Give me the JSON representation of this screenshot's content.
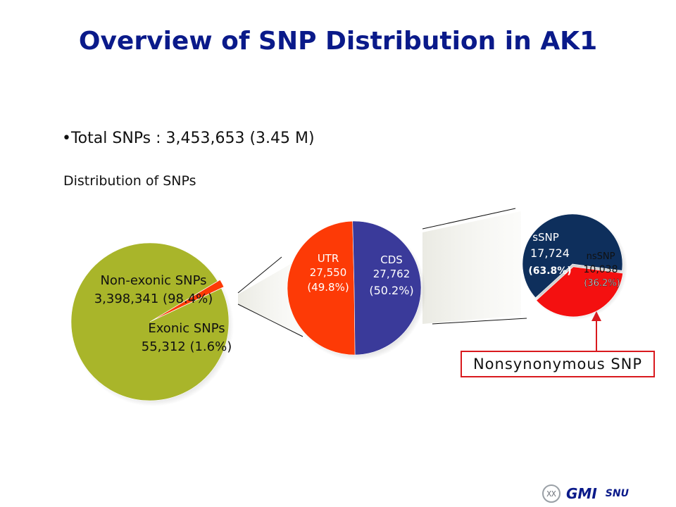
{
  "title": "Overview of SNP Distribution in AK1",
  "total_line": "•Total SNPs : 3,453,653 (3.45 M)",
  "subhead": "Distribution of SNPs",
  "callout": "Nonsynonymous  SNP",
  "footer": {
    "mark": "XX",
    "gmi": "GMI",
    "snu": "SNU"
  },
  "colors": {
    "olive": "#a9b52a",
    "red": "#fd3a06",
    "navy_purple": "#3a3a9a",
    "navy": "#0e2f5c",
    "bright_red": "#f41010",
    "title_blue": "#0a1a8a",
    "callout_red": "#d9191e"
  },
  "chart_data": [
    {
      "type": "pie",
      "slices": [
        {
          "name": "Non-exonic SNPs",
          "value": 3398341,
          "percent": 98.4,
          "color": "#a9b52a",
          "label_lines": [
            "Non-exonic SNPs",
            "3,398,341 (98.4%)"
          ]
        },
        {
          "name": "Exonic SNPs",
          "value": 55312,
          "percent": 1.6,
          "color": "#fd3a06",
          "label_lines": [
            "Exonic SNPs",
            "55,312 (1.6%)"
          ]
        }
      ]
    },
    {
      "type": "pie",
      "slices": [
        {
          "name": "UTR",
          "value": 27550,
          "percent": 49.8,
          "color": "#fd3a06",
          "label_lines": [
            "UTR",
            "27,550",
            "(49.8%)"
          ]
        },
        {
          "name": "CDS",
          "value": 27762,
          "percent": 50.2,
          "color": "#3a3a9a",
          "label_lines": [
            "CDS",
            "27,762",
            "(50.2%)"
          ]
        }
      ]
    },
    {
      "type": "pie",
      "slices": [
        {
          "name": "sSNP",
          "value": 17724,
          "percent": 63.8,
          "color": "#0e2f5c",
          "label_lines": [
            "sSNP",
            "17,724",
            "(63.8%)"
          ]
        },
        {
          "name": "nsSNP",
          "value": 10038,
          "percent": 36.2,
          "color": "#f41010",
          "label_lines": [
            "nsSNP",
            "10,038",
            "(36.2%)"
          ]
        }
      ]
    }
  ]
}
